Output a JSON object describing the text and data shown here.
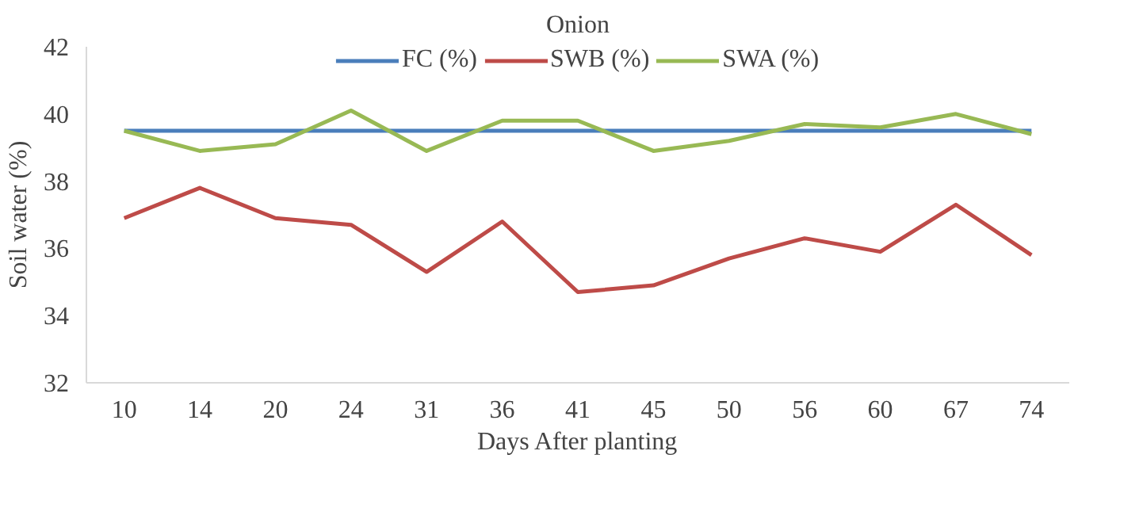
{
  "chart_data": {
    "type": "line",
    "title": "Onion",
    "xlabel": "Days After planting",
    "ylabel": "Soil water (%)",
    "categories": [
      "10",
      "14",
      "20",
      "24",
      "31",
      "36",
      "41",
      "45",
      "50",
      "56",
      "60",
      "67",
      "74"
    ],
    "series": [
      {
        "name": "FC (%)",
        "color": "#4a7ebb",
        "values": [
          39.5,
          39.5,
          39.5,
          39.5,
          39.5,
          39.5,
          39.5,
          39.5,
          39.5,
          39.5,
          39.5,
          39.5,
          39.5
        ]
      },
      {
        "name": "SWB (%)",
        "color": "#be4b48",
        "values": [
          36.9,
          37.8,
          36.9,
          36.7,
          35.3,
          36.8,
          34.7,
          34.9,
          35.7,
          36.3,
          35.9,
          37.3,
          35.8
        ]
      },
      {
        "name": "SWA (%)",
        "color": "#98b954",
        "values": [
          39.5,
          38.9,
          39.1,
          40.1,
          38.9,
          39.8,
          39.8,
          38.9,
          39.2,
          39.7,
          39.6,
          40.0,
          39.4
        ]
      }
    ],
    "ylim": [
      32,
      42
    ],
    "yticks": [
      32,
      34,
      36,
      38,
      40,
      42
    ],
    "grid": false,
    "legend": "top",
    "marker": "none",
    "line_style": "solid"
  }
}
